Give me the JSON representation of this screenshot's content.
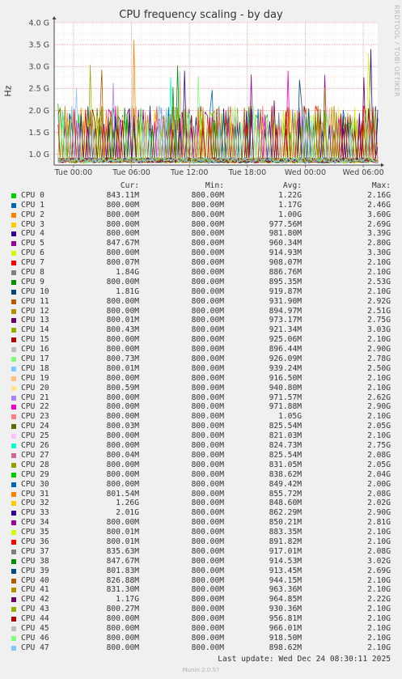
{
  "chart_data": {
    "type": "line",
    "title": "CPU frequency scaling - by day",
    "ylabel": "Hz",
    "ylim": [
      0.75,
      4.0
    ],
    "yticks": [
      "1.0 G",
      "1.5 G",
      "2.0 G",
      "2.5 G",
      "3.0 G",
      "3.5 G",
      "4.0 G"
    ],
    "yvalues": [
      1.0,
      1.5,
      2.0,
      2.5,
      3.0,
      3.5,
      4.0
    ],
    "xticks": [
      "Tue 00:00",
      "Tue 06:00",
      "Tue 12:00",
      "Tue 18:00",
      "Wed 00:00",
      "Wed 06:00"
    ],
    "xrange_hours": [
      0,
      33.5
    ],
    "xtick_hours": [
      2,
      8,
      14,
      20,
      26,
      32
    ],
    "grid": true,
    "headers": {
      "cur": "Cur:",
      "min": "Min:",
      "avg": "Avg:",
      "max": "Max:"
    },
    "series": [
      {
        "name": "CPU 0",
        "color": "#00cc00",
        "cur": "843.11M",
        "min": "800.00M",
        "avg": "1.22G",
        "max": "2.16G"
      },
      {
        "name": "CPU 1",
        "color": "#0066b3",
        "cur": "800.00M",
        "min": "800.00M",
        "avg": "1.17G",
        "max": "2.46G"
      },
      {
        "name": "CPU 2",
        "color": "#ff8000",
        "cur": "800.00M",
        "min": "800.00M",
        "avg": "1.00G",
        "max": "3.60G"
      },
      {
        "name": "CPU 3",
        "color": "#ffcc00",
        "cur": "800.00M",
        "min": "800.00M",
        "avg": "977.56M",
        "max": "2.69G"
      },
      {
        "name": "CPU 4",
        "color": "#330099",
        "cur": "800.00M",
        "min": "800.00M",
        "avg": "981.80M",
        "max": "3.39G"
      },
      {
        "name": "CPU 5",
        "color": "#990099",
        "cur": "847.67M",
        "min": "800.00M",
        "avg": "960.34M",
        "max": "2.80G"
      },
      {
        "name": "CPU 6",
        "color": "#ccff00",
        "cur": "800.00M",
        "min": "800.00M",
        "avg": "914.93M",
        "max": "3.30G"
      },
      {
        "name": "CPU 7",
        "color": "#ff0000",
        "cur": "800.07M",
        "min": "800.00M",
        "avg": "908.07M",
        "max": "2.10G"
      },
      {
        "name": "CPU 8",
        "color": "#808080",
        "cur": "1.84G",
        "min": "800.00M",
        "avg": "886.76M",
        "max": "2.10G"
      },
      {
        "name": "CPU 9",
        "color": "#008f00",
        "cur": "800.00M",
        "min": "800.00M",
        "avg": "895.35M",
        "max": "2.53G"
      },
      {
        "name": "CPU 10",
        "color": "#00487d",
        "cur": "1.81G",
        "min": "800.00M",
        "avg": "919.87M",
        "max": "2.10G"
      },
      {
        "name": "CPU 11",
        "color": "#b35a00",
        "cur": "800.00M",
        "min": "800.00M",
        "avg": "931.90M",
        "max": "2.92G"
      },
      {
        "name": "CPU 12",
        "color": "#b38f00",
        "cur": "800.00M",
        "min": "800.00M",
        "avg": "894.97M",
        "max": "2.51G"
      },
      {
        "name": "CPU 13",
        "color": "#6b006b",
        "cur": "800.01M",
        "min": "800.00M",
        "avg": "973.17M",
        "max": "2.75G"
      },
      {
        "name": "CPU 14",
        "color": "#8fb300",
        "cur": "800.43M",
        "min": "800.00M",
        "avg": "921.34M",
        "max": "3.03G"
      },
      {
        "name": "CPU 15",
        "color": "#b30000",
        "cur": "800.00M",
        "min": "800.00M",
        "avg": "925.06M",
        "max": "2.10G"
      },
      {
        "name": "CPU 16",
        "color": "#bebebe",
        "cur": "800.00M",
        "min": "800.00M",
        "avg": "896.44M",
        "max": "2.90G"
      },
      {
        "name": "CPU 17",
        "color": "#80ff80",
        "cur": "800.73M",
        "min": "800.00M",
        "avg": "926.09M",
        "max": "2.78G"
      },
      {
        "name": "CPU 18",
        "color": "#80c9ff",
        "cur": "800.01M",
        "min": "800.00M",
        "avg": "939.24M",
        "max": "2.50G"
      },
      {
        "name": "CPU 19",
        "color": "#ffc080",
        "cur": "800.00M",
        "min": "800.00M",
        "avg": "916.50M",
        "max": "2.10G"
      },
      {
        "name": "CPU 20",
        "color": "#ffe680",
        "cur": "800.59M",
        "min": "800.00M",
        "avg": "940.80M",
        "max": "2.10G"
      },
      {
        "name": "CPU 21",
        "color": "#aa80ff",
        "cur": "800.00M",
        "min": "800.00M",
        "avg": "971.57M",
        "max": "2.62G"
      },
      {
        "name": "CPU 22",
        "color": "#ee00cc",
        "cur": "800.00M",
        "min": "800.00M",
        "avg": "971.88M",
        "max": "2.90G"
      },
      {
        "name": "CPU 23",
        "color": "#ff8080",
        "cur": "800.00M",
        "min": "800.00M",
        "avg": "1.05G",
        "max": "2.10G"
      },
      {
        "name": "CPU 24",
        "color": "#666600",
        "cur": "800.03M",
        "min": "800.00M",
        "avg": "825.54M",
        "max": "2.05G"
      },
      {
        "name": "CPU 25",
        "color": "#ffbfff",
        "cur": "800.00M",
        "min": "800.00M",
        "avg": "821.03M",
        "max": "2.10G"
      },
      {
        "name": "CPU 26",
        "color": "#00ffcc",
        "cur": "800.00M",
        "min": "800.00M",
        "avg": "824.73M",
        "max": "2.75G"
      },
      {
        "name": "CPU 27",
        "color": "#cc6699",
        "cur": "800.04M",
        "min": "800.00M",
        "avg": "825.54M",
        "max": "2.08G"
      },
      {
        "name": "CPU 28",
        "color": "#999900",
        "cur": "800.00M",
        "min": "800.00M",
        "avg": "831.05M",
        "max": "2.05G"
      },
      {
        "name": "CPU 29",
        "color": "#00cc00",
        "cur": "800.00M",
        "min": "800.00M",
        "avg": "838.62M",
        "max": "2.04G"
      },
      {
        "name": "CPU 30",
        "color": "#0066b3",
        "cur": "800.00M",
        "min": "800.00M",
        "avg": "849.42M",
        "max": "2.00G"
      },
      {
        "name": "CPU 31",
        "color": "#ff8000",
        "cur": "801.54M",
        "min": "800.00M",
        "avg": "855.72M",
        "max": "2.08G"
      },
      {
        "name": "CPU 32",
        "color": "#ffcc00",
        "cur": "1.26G",
        "min": "800.00M",
        "avg": "848.60M",
        "max": "2.02G"
      },
      {
        "name": "CPU 33",
        "color": "#330099",
        "cur": "2.01G",
        "min": "800.00M",
        "avg": "862.29M",
        "max": "2.90G"
      },
      {
        "name": "CPU 34",
        "color": "#990099",
        "cur": "800.00M",
        "min": "800.00M",
        "avg": "850.21M",
        "max": "2.81G"
      },
      {
        "name": "CPU 35",
        "color": "#ccff00",
        "cur": "800.01M",
        "min": "800.00M",
        "avg": "883.35M",
        "max": "2.10G"
      },
      {
        "name": "CPU 36",
        "color": "#ff0000",
        "cur": "800.01M",
        "min": "800.00M",
        "avg": "891.82M",
        "max": "2.10G"
      },
      {
        "name": "CPU 37",
        "color": "#808080",
        "cur": "835.63M",
        "min": "800.00M",
        "avg": "917.01M",
        "max": "2.08G"
      },
      {
        "name": "CPU 38",
        "color": "#008f00",
        "cur": "847.67M",
        "min": "800.00M",
        "avg": "914.53M",
        "max": "3.02G"
      },
      {
        "name": "CPU 39",
        "color": "#00487d",
        "cur": "801.83M",
        "min": "800.00M",
        "avg": "913.45M",
        "max": "2.69G"
      },
      {
        "name": "CPU 40",
        "color": "#b35a00",
        "cur": "826.88M",
        "min": "800.00M",
        "avg": "944.15M",
        "max": "2.10G"
      },
      {
        "name": "CPU 41",
        "color": "#b38f00",
        "cur": "831.30M",
        "min": "800.00M",
        "avg": "963.36M",
        "max": "2.10G"
      },
      {
        "name": "CPU 42",
        "color": "#6b006b",
        "cur": "1.17G",
        "min": "800.00M",
        "avg": "964.85M",
        "max": "2.22G"
      },
      {
        "name": "CPU 43",
        "color": "#8fb300",
        "cur": "800.27M",
        "min": "800.00M",
        "avg": "930.36M",
        "max": "2.10G"
      },
      {
        "name": "CPU 44",
        "color": "#b30000",
        "cur": "800.00M",
        "min": "800.00M",
        "avg": "956.81M",
        "max": "2.10G"
      },
      {
        "name": "CPU 45",
        "color": "#bebebe",
        "cur": "800.00M",
        "min": "800.00M",
        "avg": "966.01M",
        "max": "2.10G"
      },
      {
        "name": "CPU 46",
        "color": "#80ff80",
        "cur": "800.00M",
        "min": "800.00M",
        "avg": "918.50M",
        "max": "2.10G"
      },
      {
        "name": "CPU 47",
        "color": "#80c9ff",
        "cur": "800.00M",
        "min": "800.00M",
        "avg": "898.62M",
        "max": "2.10G"
      }
    ]
  },
  "side_label": "RRDTOOL / TOBI OETIKER",
  "last_update": "Last update: Wed Dec 24 08:30:11 2025",
  "footer": "Munin 2.0.57"
}
